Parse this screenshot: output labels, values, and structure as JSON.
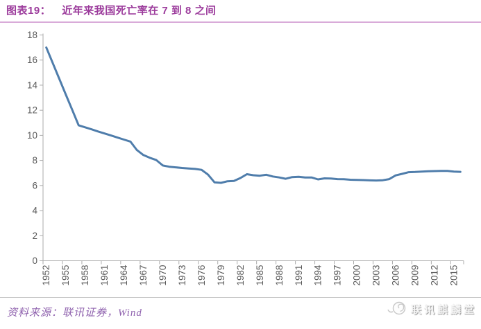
{
  "header": {
    "label": "图表19：",
    "title": "近年来我国死亡率在 7 到 8 之间"
  },
  "footer": {
    "source": "资料来源：联讯证券，Wind",
    "watermark": "联讯麒麟堂"
  },
  "colors": {
    "line": "#4f7dab",
    "title_text": "#9c3c9c",
    "title_underline": "#d9abd9",
    "source_text": "#8f62ae",
    "axis": "#ababab",
    "tick_label": "#595959",
    "divider": "#c9c9c9",
    "watermark_gray": "#c9c9c9"
  },
  "chart_data": {
    "type": "line",
    "title": "近年来我国死亡率在 7 到 8 之间",
    "xlabel": "",
    "ylabel": "",
    "x": [
      1952,
      1953,
      1954,
      1955,
      1956,
      1957,
      1958,
      1959,
      1960,
      1961,
      1962,
      1963,
      1964,
      1965,
      1966,
      1967,
      1968,
      1969,
      1970,
      1971,
      1972,
      1973,
      1974,
      1975,
      1976,
      1977,
      1978,
      1979,
      1980,
      1981,
      1982,
      1983,
      1984,
      1985,
      1986,
      1987,
      1988,
      1989,
      1990,
      1991,
      1992,
      1993,
      1994,
      1995,
      1996,
      1997,
      1998,
      1999,
      2000,
      2001,
      2002,
      2003,
      2004,
      2005,
      2006,
      2007,
      2008,
      2009,
      2010,
      2011,
      2012,
      2013,
      2014,
      2015,
      2016
    ],
    "values": [
      17.0,
      15.76,
      14.52,
      13.28,
      12.04,
      10.8,
      10.64,
      10.48,
      10.31,
      10.15,
      9.99,
      9.82,
      9.66,
      9.5,
      8.83,
      8.43,
      8.21,
      8.03,
      7.6,
      7.5,
      7.45,
      7.4,
      7.36,
      7.32,
      7.25,
      6.87,
      6.25,
      6.21,
      6.34,
      6.36,
      6.6,
      6.9,
      6.82,
      6.78,
      6.86,
      6.72,
      6.64,
      6.54,
      6.67,
      6.7,
      6.64,
      6.64,
      6.49,
      6.57,
      6.56,
      6.51,
      6.5,
      6.46,
      6.45,
      6.43,
      6.41,
      6.4,
      6.42,
      6.51,
      6.81,
      6.93,
      7.06,
      7.08,
      7.11,
      7.14,
      7.15,
      7.16,
      7.16,
      7.11,
      7.09
    ],
    "ylim": [
      0,
      18
    ],
    "ytick_step": 2,
    "yticks": [
      0,
      2,
      4,
      6,
      8,
      10,
      12,
      14,
      16,
      18
    ],
    "xtick_labels": [
      "1952",
      "1955",
      "1958",
      "1961",
      "1964",
      "1967",
      "1970",
      "1973",
      "1976",
      "1979",
      "1982",
      "1985",
      "1988",
      "1991",
      "1994",
      "1997",
      "2000",
      "2003",
      "2006",
      "2009",
      "2012",
      "2015"
    ],
    "xtick_label_every": 3,
    "grid": false,
    "legend_position": "none",
    "series_color": "#4f7dab"
  }
}
